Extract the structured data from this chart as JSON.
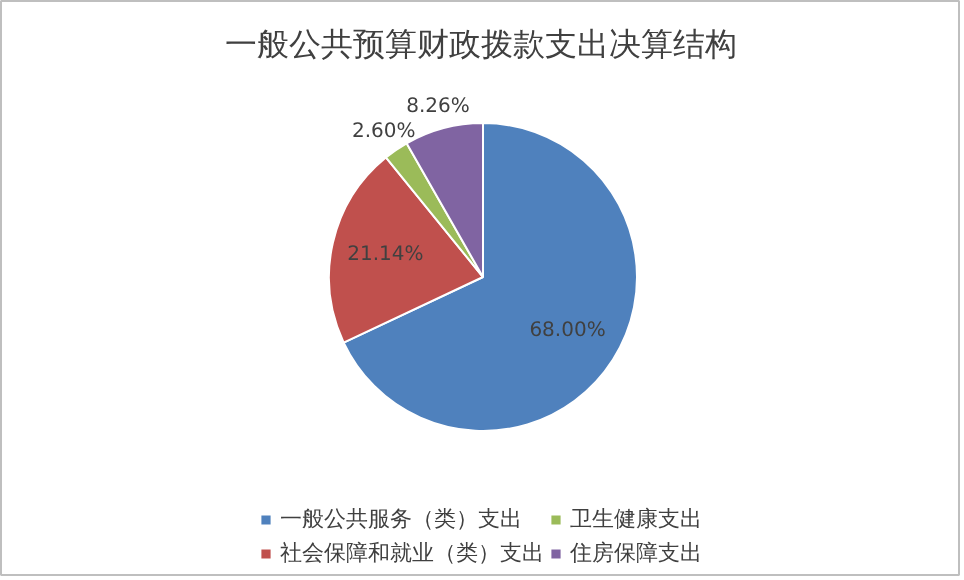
{
  "chart_data": {
    "type": "pie",
    "title": "一般公共预算财政拨款支出决算结构",
    "categories": [
      "一般公共服务（类）支出",
      "社会保障和就业（类）支出",
      "卫生健康支出",
      "住房保障支出"
    ],
    "values": [
      68.0,
      21.14,
      2.6,
      8.26
    ],
    "colors": [
      "#4f81bd",
      "#c0504d",
      "#9bbb59",
      "#8064a2"
    ],
    "value_labels": [
      "68.00%",
      "21.14%",
      "2.60%",
      "8.26%"
    ],
    "legend": "bottom"
  }
}
